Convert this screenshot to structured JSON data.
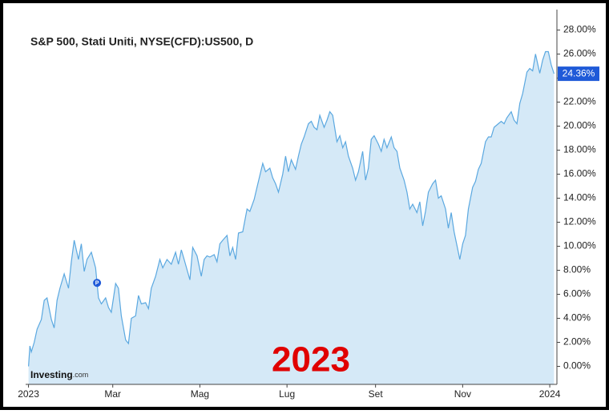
{
  "chart_data": {
    "type": "area",
    "title": "S&P 500, Stati Uniti, NYSE(CFD):US500, D",
    "annotation": "2023",
    "brand": {
      "name": "Investing",
      "suffix": ".com"
    },
    "color": "#5ba8e0",
    "fill": "#d5e9f7",
    "x": [
      0,
      1,
      2,
      4,
      6,
      9,
      11,
      13,
      16,
      18,
      20,
      22,
      25,
      28,
      30,
      32,
      35,
      37,
      39,
      41,
      44,
      47,
      49,
      51,
      54,
      56,
      58,
      61,
      63,
      65,
      68,
      70,
      72,
      75,
      77,
      79,
      82,
      84,
      86,
      89,
      92,
      94,
      97,
      100,
      103,
      105,
      107,
      109,
      113,
      115,
      118,
      121,
      123,
      125,
      127,
      130,
      132,
      134,
      136,
      139,
      141,
      143,
      145,
      147,
      150,
      153,
      155,
      158,
      160,
      162,
      164,
      166,
      169,
      171,
      173,
      175,
      178,
      180,
      182,
      184,
      187,
      189,
      191,
      193,
      196,
      198,
      200,
      202,
      204,
      207,
      209,
      211,
      213,
      216,
      218,
      220,
      222,
      224,
      227,
      229,
      231,
      234,
      236,
      238,
      240,
      242,
      245,
      247,
      249,
      251,
      254,
      256,
      258,
      260,
      263,
      265,
      267,
      269,
      272,
      274,
      276,
      278,
      280,
      283,
      285,
      287,
      289,
      292,
      294,
      296,
      298,
      301,
      302,
      304,
      306,
      308,
      311,
      313,
      315,
      317,
      320,
      322,
      324,
      326,
      329,
      331,
      333,
      335,
      338,
      340,
      342,
      344,
      346,
      349,
      351,
      353,
      355,
      358,
      360,
      362,
      364,
      366,
      368
    ],
    "values": [
      0,
      1.7,
      1.2,
      2.0,
      3.1,
      3.9,
      5.5,
      5.7,
      3.9,
      3.2,
      5.5,
      6.5,
      7.7,
      6.5,
      8.7,
      10.5,
      8.9,
      10.2,
      7.9,
      8.9,
      9.5,
      8.2,
      5.7,
      5.2,
      5.7,
      4.9,
      4.5,
      6.9,
      6.5,
      4.2,
      2.2,
      1.9,
      4.0,
      4.2,
      5.9,
      5.2,
      5.3,
      4.8,
      6.5,
      7.5,
      8.9,
      8.2,
      8.9,
      8.5,
      9.5,
      8.5,
      9.7,
      8.9,
      7.2,
      9.9,
      9.2,
      7.5,
      8.9,
      9.2,
      9.1,
      9.3,
      8.7,
      10.2,
      10.5,
      10.9,
      9.2,
      9.9,
      8.9,
      11.1,
      11.2,
      13.1,
      12.9,
      13.9,
      14.9,
      15.9,
      16.9,
      16.2,
      16.5,
      15.7,
      15.2,
      14.5,
      16.0,
      17.5,
      16.2,
      17.2,
      16.4,
      17.5,
      18.5,
      19.1,
      20.2,
      20.4,
      19.9,
      19.7,
      20.9,
      19.9,
      20.5,
      21.2,
      20.9,
      18.7,
      19.2,
      18.2,
      18.7,
      17.5,
      16.5,
      15.5,
      16.2,
      17.9,
      15.5,
      16.5,
      18.9,
      19.2,
      18.5,
      17.9,
      18.9,
      18.2,
      19.1,
      18.2,
      17.9,
      16.5,
      15.5,
      14.5,
      13.1,
      13.5,
      12.8,
      13.7,
      11.7,
      12.9,
      14.5,
      15.2,
      15.5,
      14.0,
      14.2,
      13.1,
      11.5,
      12.8,
      11.2,
      9.5,
      8.9,
      10.2,
      10.9,
      13.1,
      14.9,
      15.4,
      16.4,
      16.9,
      18.7,
      19.1,
      19.1,
      19.9,
      20.2,
      20.4,
      20.2,
      20.7,
      21.2,
      20.5,
      20.2,
      21.9,
      22.7,
      24.5,
      24.8,
      24.6,
      26.0,
      24.4,
      25.5,
      26.2,
      26.2,
      25.1,
      24.36
    ],
    "last_value": {
      "value": 24.36,
      "label": "24.36%"
    },
    "events": [
      {
        "x": 48,
        "label": "P"
      }
    ],
    "xlim": [
      -2,
      370
    ],
    "xticks": [
      {
        "value": 0,
        "label": "2023"
      },
      {
        "value": 59,
        "label": "Mar"
      },
      {
        "value": 120,
        "label": "Mag"
      },
      {
        "value": 181,
        "label": "Lug"
      },
      {
        "value": 243,
        "label": "Set"
      },
      {
        "value": 304,
        "label": "Nov"
      },
      {
        "value": 365,
        "label": "2024"
      }
    ],
    "ylim": [
      -1.5,
      29.7
    ],
    "yticks": [
      {
        "value": 0,
        "label": "0.00%"
      },
      {
        "value": 2,
        "label": "2.00%"
      },
      {
        "value": 4,
        "label": "4.00%"
      },
      {
        "value": 6,
        "label": "6.00%"
      },
      {
        "value": 8,
        "label": "8.00%"
      },
      {
        "value": 10,
        "label": "10.00%"
      },
      {
        "value": 12,
        "label": "12.00%"
      },
      {
        "value": 14,
        "label": "14.00%"
      },
      {
        "value": 16,
        "label": "16.00%"
      },
      {
        "value": 18,
        "label": "18.00%"
      },
      {
        "value": 20,
        "label": "20.00%"
      },
      {
        "value": 22,
        "label": "22.00%"
      },
      {
        "value": 24,
        "label": "24.00%"
      },
      {
        "value": 26,
        "label": "26.00%"
      },
      {
        "value": 28,
        "label": "28.00%"
      }
    ]
  }
}
